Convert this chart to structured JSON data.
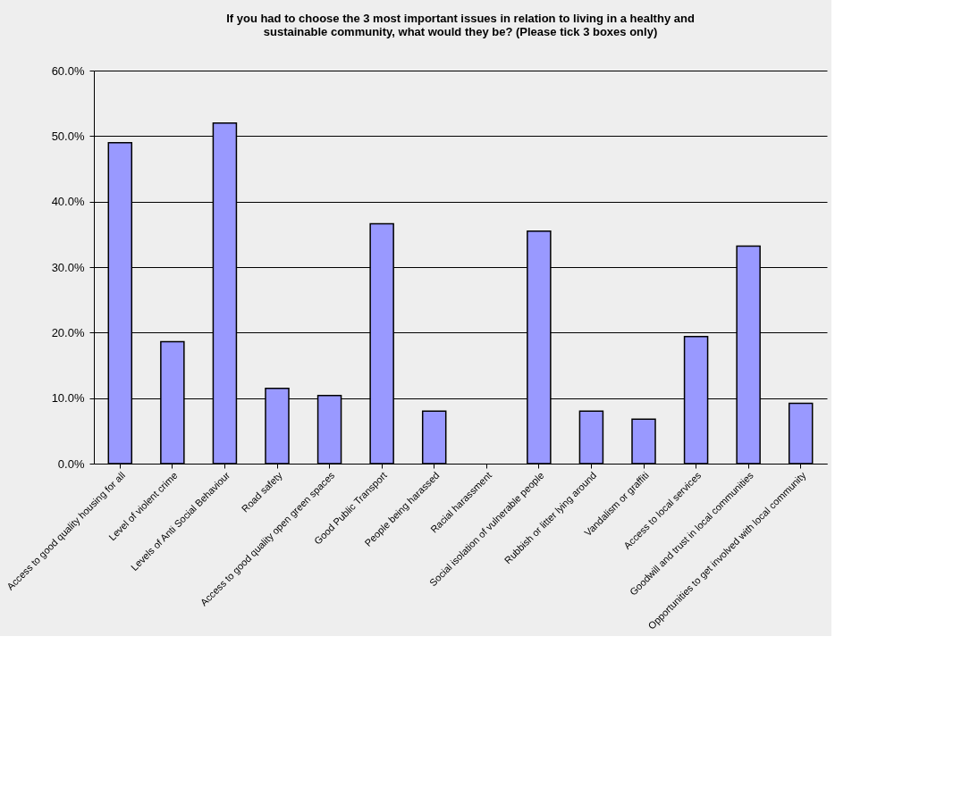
{
  "chart_data": {
    "type": "bar",
    "title": [
      "If you had to choose the 3 most important issues in relation to living in a healthy and",
      "sustainable community, what would they be? (Please tick 3 boxes only)"
    ],
    "categories": [
      "Access to good quality housing for all",
      "Level of violent crime",
      "Levels of Anti Social Behaviour",
      "Road safety",
      "Access to good quality open green spaces",
      "Good Public Transport",
      "People being harassed",
      "Racial harassment",
      "Social isolation of vulnerable people",
      "Rubbish or litter lying around",
      "Vandalism or graffiti",
      "Access to local services",
      "Goodwill and trust in local communities",
      "Opportunities to get involved with local community"
    ],
    "values": [
      49.0,
      18.6,
      52.0,
      11.5,
      10.4,
      36.6,
      8.0,
      null,
      35.5,
      8.0,
      6.8,
      19.4,
      33.2,
      9.2
    ],
    "color": "#9999ff",
    "ylim": [
      0,
      60
    ],
    "yticks": [
      {
        "value": 0,
        "label": "0.0%"
      },
      {
        "value": 10,
        "label": "10.0%"
      },
      {
        "value": 20,
        "label": "20.0%"
      },
      {
        "value": 30,
        "label": "30.0%"
      },
      {
        "value": 40,
        "label": "40.0%"
      },
      {
        "value": 50,
        "label": "50.0%"
      },
      {
        "value": 60,
        "label": "60.0%"
      }
    ],
    "grid": "y"
  }
}
